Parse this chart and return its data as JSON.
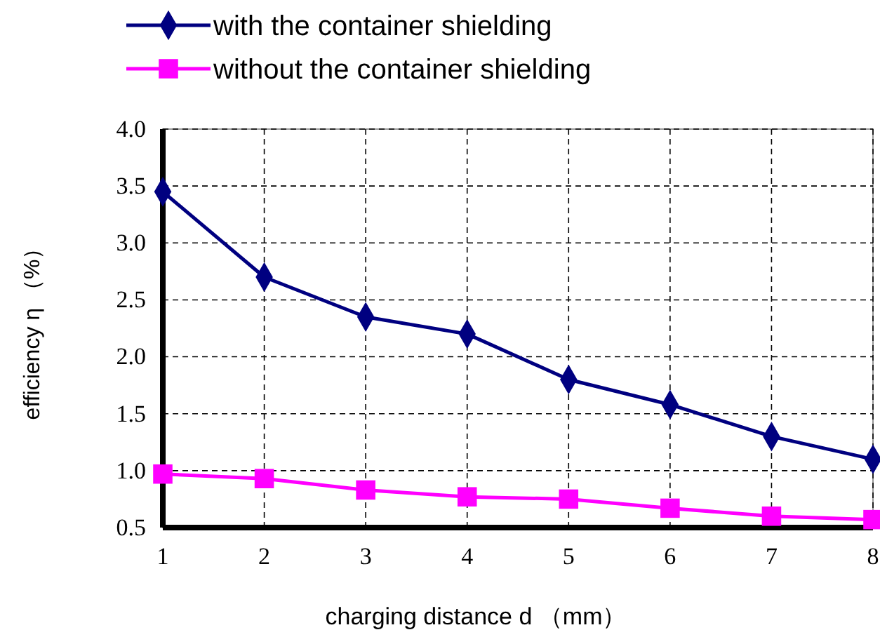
{
  "chart_data": {
    "type": "line",
    "xlabel": "charging distance d （mm）",
    "ylabel": "efficiency η （%）",
    "x": [
      1,
      2,
      3,
      4,
      5,
      6,
      7,
      8
    ],
    "series": [
      {
        "name": "with the container shielding",
        "color": "#000080",
        "marker": "diamond",
        "values": [
          3.45,
          2.7,
          2.35,
          2.2,
          1.8,
          1.58,
          1.3,
          1.1
        ]
      },
      {
        "name": "without the container shielding",
        "color": "#ff00ff",
        "marker": "square",
        "values": [
          0.97,
          0.93,
          0.83,
          0.77,
          0.75,
          0.67,
          0.6,
          0.57
        ]
      }
    ],
    "xlim": [
      1,
      8
    ],
    "xticks": [
      1,
      2,
      3,
      4,
      5,
      6,
      7,
      8
    ],
    "ylim": [
      0.5,
      4.0
    ],
    "yticks": [
      {
        "value": 0.5,
        "label": "0.5"
      },
      {
        "value": 1,
        "label": "1.0"
      },
      {
        "value": 1.5,
        "label": "1.5"
      },
      {
        "value": 2,
        "label": "2.0"
      },
      {
        "value": 2.5,
        "label": "2.5"
      },
      {
        "value": 3,
        "label": "3.0"
      },
      {
        "value": 3.5,
        "label": "3.5"
      },
      {
        "value": 4,
        "label": "4.0"
      }
    ],
    "grid": true,
    "legend": "top",
    "line_style": "solid"
  }
}
